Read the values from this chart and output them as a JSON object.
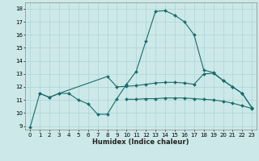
{
  "xlabel": "Humidex (Indice chaleur)",
  "bg_color": "#cce8e8",
  "grid_color": "#add4d4",
  "line_color": "#1a6b6b",
  "xlim": [
    -0.5,
    23.5
  ],
  "ylim": [
    8.7,
    18.5
  ],
  "yticks": [
    9,
    10,
    11,
    12,
    13,
    14,
    15,
    16,
    17,
    18
  ],
  "xticks": [
    0,
    1,
    2,
    3,
    4,
    5,
    6,
    7,
    8,
    9,
    10,
    11,
    12,
    13,
    14,
    15,
    16,
    17,
    18,
    19,
    20,
    21,
    22,
    23
  ],
  "series": [
    {
      "x": [
        0,
        1,
        2,
        3,
        4,
        5,
        6,
        7,
        8,
        9,
        10,
        11,
        12,
        13,
        14,
        15,
        16,
        17,
        18,
        19,
        20,
        21,
        22,
        23
      ],
      "y": [
        8.9,
        11.5,
        11.2,
        11.5,
        11.5,
        11.0,
        10.7,
        9.9,
        9.9,
        11.1,
        12.2,
        13.2,
        15.5,
        17.8,
        17.85,
        17.5,
        17.0,
        16.0,
        13.3,
        13.1,
        12.5,
        12.0,
        11.5,
        10.4
      ]
    },
    {
      "x": [
        1,
        2,
        3,
        8,
        9,
        10,
        11,
        12,
        13,
        14,
        15,
        16,
        17,
        18,
        19,
        20,
        21,
        22,
        23
      ],
      "y": [
        11.5,
        11.2,
        11.5,
        12.8,
        12.0,
        12.05,
        12.1,
        12.2,
        12.3,
        12.35,
        12.35,
        12.3,
        12.2,
        13.0,
        13.05,
        12.5,
        12.0,
        11.5,
        10.4
      ]
    },
    {
      "x": [
        10,
        11,
        12,
        13,
        14,
        15,
        16,
        17,
        18,
        19,
        20,
        21,
        22,
        23
      ],
      "y": [
        11.05,
        11.05,
        11.1,
        11.1,
        11.15,
        11.15,
        11.15,
        11.1,
        11.05,
        11.0,
        10.9,
        10.75,
        10.55,
        10.35
      ]
    }
  ]
}
